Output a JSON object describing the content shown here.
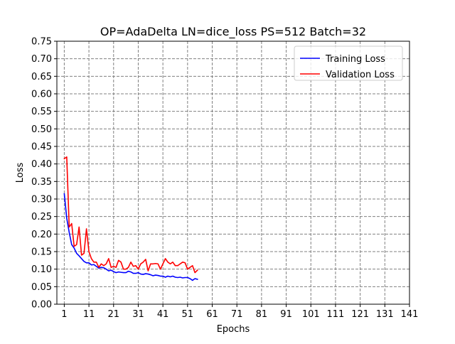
{
  "chart_data": {
    "type": "line",
    "title": "OP=AdaDelta LN=dice_loss PS=512 Batch=32",
    "xlabel": "Epochs",
    "ylabel": "Loss",
    "xlim": [
      -2,
      141
    ],
    "ylim": [
      0,
      0.75
    ],
    "xticks": [
      1,
      11,
      21,
      31,
      41,
      51,
      61,
      71,
      81,
      91,
      101,
      111,
      121,
      131,
      141
    ],
    "xtick_labels": [
      "1",
      "11",
      "21",
      "31",
      "41",
      "51",
      "61",
      "71",
      "81",
      "91",
      "101",
      "111",
      "121",
      "131",
      "141"
    ],
    "yticks": [
      0,
      0.05,
      0.1,
      0.15,
      0.2,
      0.25,
      0.3,
      0.35,
      0.4,
      0.45,
      0.5,
      0.55,
      0.6,
      0.65,
      0.7,
      0.75
    ],
    "ytick_labels": [
      "0.00",
      "0.05",
      "0.10",
      "0.15",
      "0.20",
      "0.25",
      "0.30",
      "0.35",
      "0.40",
      "0.45",
      "0.50",
      "0.55",
      "0.60",
      "0.65",
      "0.70",
      "0.75"
    ],
    "grid": true,
    "grid_style": "dashed",
    "legend_position": "top-right",
    "series": [
      {
        "name": "Training Loss",
        "color": "#0000ff",
        "x": [
          1,
          2,
          3,
          4,
          5,
          6,
          7,
          8,
          9,
          10,
          11,
          12,
          13,
          14,
          15,
          16,
          17,
          18,
          19,
          20,
          21,
          22,
          23,
          24,
          25,
          26,
          27,
          28,
          29,
          30,
          31,
          32,
          33,
          34,
          35,
          36,
          37,
          38,
          39,
          40,
          41,
          42,
          43,
          44,
          45,
          46,
          47,
          48,
          49,
          50,
          51,
          52,
          53,
          54,
          55
        ],
        "values": [
          0.315,
          0.245,
          0.205,
          0.17,
          0.16,
          0.145,
          0.138,
          0.13,
          0.122,
          0.118,
          0.118,
          0.112,
          0.113,
          0.108,
          0.103,
          0.105,
          0.104,
          0.1,
          0.095,
          0.097,
          0.093,
          0.09,
          0.092,
          0.091,
          0.09,
          0.09,
          0.094,
          0.092,
          0.088,
          0.088,
          0.09,
          0.086,
          0.085,
          0.087,
          0.086,
          0.084,
          0.081,
          0.083,
          0.082,
          0.08,
          0.08,
          0.077,
          0.08,
          0.078,
          0.08,
          0.077,
          0.076,
          0.077,
          0.075,
          0.076,
          0.076,
          0.073,
          0.068,
          0.073,
          0.071
        ]
      },
      {
        "name": "Validation Loss",
        "color": "#ff0000",
        "x": [
          1,
          2,
          3,
          4,
          5,
          6,
          7,
          8,
          9,
          10,
          11,
          12,
          13,
          14,
          15,
          16,
          17,
          18,
          19,
          20,
          21,
          22,
          23,
          24,
          25,
          26,
          27,
          28,
          29,
          30,
          31,
          32,
          33,
          34,
          35,
          36,
          37,
          38,
          39,
          40,
          41,
          42,
          43,
          44,
          45,
          46,
          47,
          48,
          49,
          50,
          51,
          52,
          53,
          54,
          55
        ],
        "values": [
          0.415,
          0.42,
          0.22,
          0.23,
          0.165,
          0.17,
          0.22,
          0.14,
          0.145,
          0.215,
          0.15,
          0.13,
          0.12,
          0.12,
          0.105,
          0.115,
          0.11,
          0.115,
          0.13,
          0.105,
          0.108,
          0.105,
          0.125,
          0.12,
          0.1,
          0.1,
          0.105,
          0.12,
          0.108,
          0.11,
          0.1,
          0.115,
          0.12,
          0.128,
          0.095,
          0.115,
          0.115,
          0.116,
          0.115,
          0.1,
          0.115,
          0.13,
          0.12,
          0.115,
          0.12,
          0.11,
          0.11,
          0.115,
          0.12,
          0.118,
          0.1,
          0.105,
          0.11,
          0.09,
          0.097
        ]
      }
    ]
  }
}
